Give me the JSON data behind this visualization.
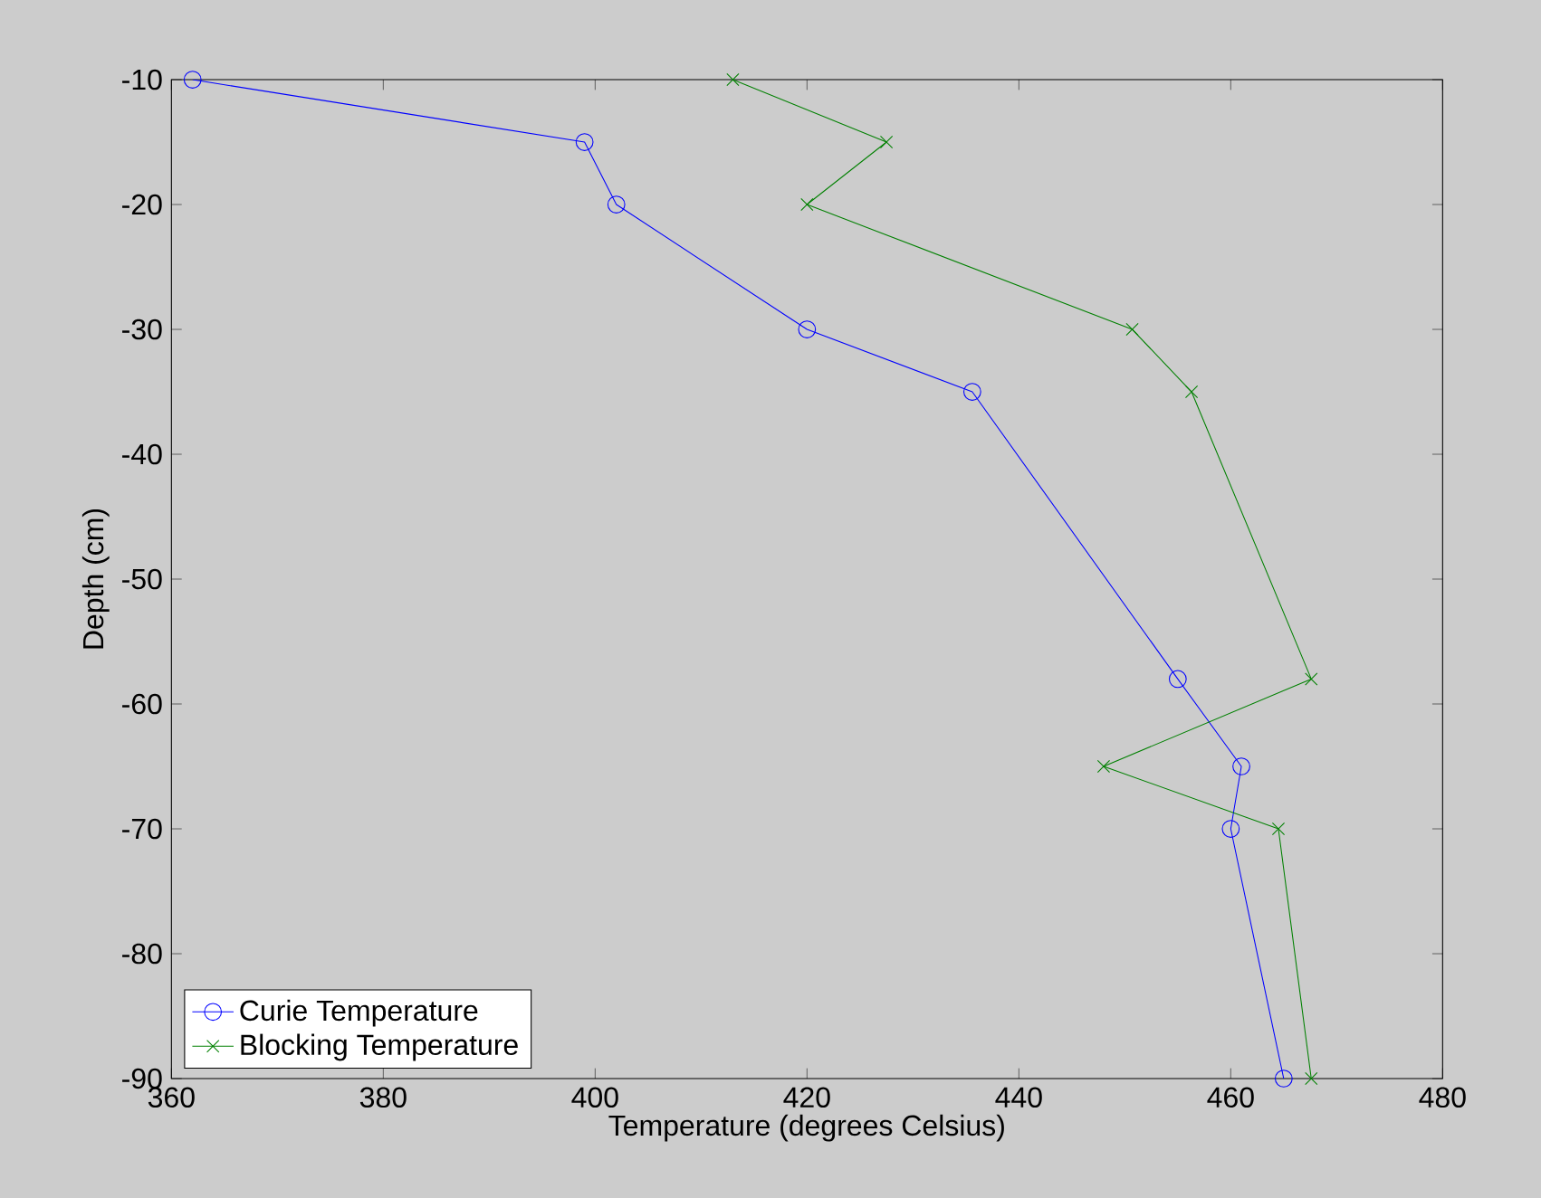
{
  "chart_data": {
    "type": "line",
    "xlabel": "Temperature (degrees Celsius)",
    "ylabel": "Depth (cm)",
    "xlim": [
      360,
      480
    ],
    "ylim": [
      -90,
      -10
    ],
    "xticks": [
      360,
      380,
      400,
      420,
      440,
      460,
      480
    ],
    "yticks": [
      -90,
      -80,
      -70,
      -60,
      -50,
      -40,
      -30,
      -20,
      -10
    ],
    "legend": "bottom left",
    "grid": false,
    "series": [
      {
        "name": "Curie Temperature",
        "color": "#0000ff",
        "marker": "circle",
        "x": [
          362,
          399,
          402,
          420,
          435.6,
          455,
          461,
          460,
          465
        ],
        "values": [
          -10,
          -15,
          -20,
          -30,
          -35,
          -58,
          -65,
          -70,
          -90
        ]
      },
      {
        "name": "Blocking Temperature",
        "color": "#008000",
        "marker": "cross",
        "x": [
          413,
          427.5,
          420,
          450.7,
          456.3,
          467.6,
          448,
          464.5,
          467.6
        ],
        "values": [
          -10,
          -15,
          -20,
          -30,
          -35,
          -58,
          -65,
          -70,
          -90
        ]
      }
    ]
  }
}
